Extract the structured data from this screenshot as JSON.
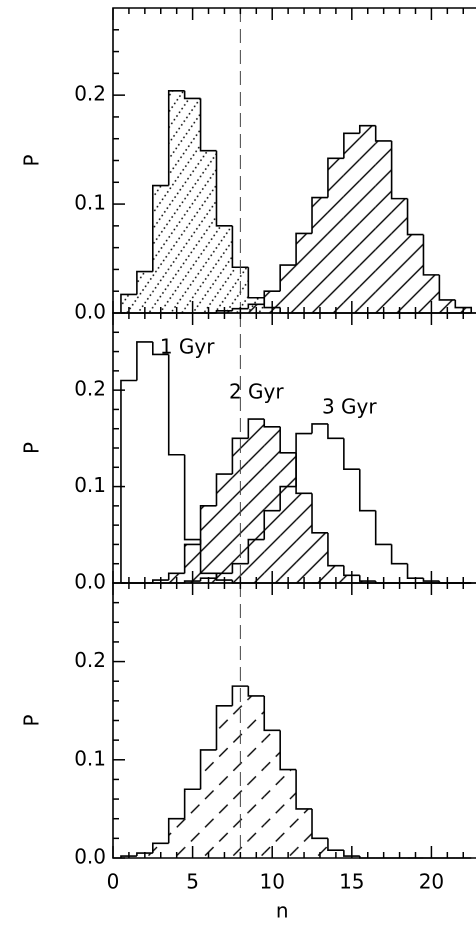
{
  "chart_data": [
    {
      "type": "histogram",
      "xlim": [
        0,
        22.8
      ],
      "ylim": [
        0,
        0.28
      ],
      "xticks": [
        0,
        5,
        10,
        15,
        20
      ],
      "xminorticks": [
        1,
        2,
        3,
        4,
        6,
        7,
        8,
        9,
        11,
        12,
        13,
        14,
        16,
        17,
        18,
        19,
        21,
        22
      ],
      "yticks": [
        {
          "value": 0,
          "label": "0.0"
        },
        0.1,
        0.2
      ],
      "yminorticks": [
        0.02,
        0.04,
        0.06,
        0.08,
        0.12,
        0.14,
        0.16,
        0.18,
        0.22,
        0.24,
        0.26
      ],
      "ylabel": "P",
      "vline": 8,
      "color": "#000000",
      "bins": [
        0.5,
        1.5,
        2.5,
        3.5,
        4.5,
        5.5,
        6.5,
        7.5,
        8.5,
        9.5,
        10.5,
        11.5,
        12.5,
        13.5,
        14.5,
        15.5,
        16.5,
        17.5,
        18.5,
        19.5,
        20.5,
        21.5,
        22.5
      ],
      "series": [
        {
          "hatch": "dotted",
          "values": [
            0.017,
            0.038,
            0.117,
            0.204,
            0.197,
            0.149,
            0.08,
            0.042,
            0.014,
            0.005,
            0,
            0,
            0,
            0,
            0,
            0,
            0,
            0,
            0,
            0,
            0,
            0
          ]
        },
        {
          "hatch": "diagonal",
          "values": [
            0,
            0,
            0,
            0,
            0,
            0,
            0.002,
            0.004,
            0.008,
            0.02,
            0.044,
            0.073,
            0.106,
            0.142,
            0.165,
            0.172,
            0.158,
            0.105,
            0.072,
            0.035,
            0.012,
            0.005
          ]
        }
      ]
    },
    {
      "type": "histogram",
      "xlim": [
        0,
        22.8
      ],
      "ylim": [
        0,
        0.28
      ],
      "xticks": [
        0,
        5,
        10,
        15,
        20
      ],
      "xminorticks": [
        1,
        2,
        3,
        4,
        6,
        7,
        8,
        9,
        11,
        12,
        13,
        14,
        16,
        17,
        18,
        19,
        21,
        22
      ],
      "yticks": [
        {
          "value": 0,
          "label": "0.0"
        },
        0.1,
        0.2
      ],
      "yminorticks": [
        0.02,
        0.04,
        0.06,
        0.08,
        0.12,
        0.14,
        0.16,
        0.18,
        0.22,
        0.24,
        0.26
      ],
      "ylabel": "P",
      "vline": 8,
      "color": "#000000",
      "bins": [
        0.5,
        1.5,
        2.5,
        3.5,
        4.5,
        5.5,
        6.5,
        7.5,
        8.5,
        9.5,
        10.5,
        11.5,
        12.5,
        13.5,
        14.5,
        15.5,
        16.5,
        17.5,
        18.5,
        19.5,
        20.5,
        21.5,
        22.5
      ],
      "series": [
        {
          "name": "1 Gyr",
          "hatch": "none",
          "values": [
            0.21,
            0.25,
            0.237,
            0.133,
            0.045,
            0.01,
            0.003,
            0,
            0,
            0,
            0,
            0,
            0,
            0,
            0,
            0,
            0,
            0,
            0,
            0,
            0,
            0
          ]
        },
        {
          "name": "2 Gyr",
          "hatch": "diagonal",
          "values": [
            0,
            0,
            0.003,
            0.01,
            0.04,
            0.08,
            0.113,
            0.15,
            0.17,
            0.162,
            0.135,
            0.093,
            0.052,
            0.018,
            0.008,
            0.002,
            0,
            0,
            0,
            0,
            0,
            0
          ]
        },
        {
          "name": "3 Gyr",
          "hatch": "none",
          "values": [
            0,
            0,
            0,
            0,
            0.002,
            0.005,
            0.01,
            0.02,
            0.045,
            0.075,
            0.1,
            0.155,
            0.165,
            0.15,
            0.118,
            0.075,
            0.04,
            0.02,
            0.005,
            0.002,
            0,
            0
          ]
        }
      ]
    },
    {
      "type": "histogram",
      "xlim": [
        0,
        22.8
      ],
      "ylim": [
        0,
        0.28
      ],
      "xticks": [
        0,
        5,
        10,
        15,
        20
      ],
      "xminorticks": [
        1,
        2,
        3,
        4,
        6,
        7,
        8,
        9,
        11,
        12,
        13,
        14,
        16,
        17,
        18,
        19,
        21,
        22
      ],
      "xtick_labels": true,
      "yticks": [
        {
          "value": 0,
          "label": "0.0"
        },
        0.1,
        0.2
      ],
      "yminorticks": [
        0.02,
        0.04,
        0.06,
        0.08,
        0.12,
        0.14,
        0.16,
        0.18,
        0.22,
        0.24,
        0.26
      ],
      "ylabel": "P",
      "xlabel": "n",
      "vline": 8,
      "color": "#000000",
      "bins": [
        0.5,
        1.5,
        2.5,
        3.5,
        4.5,
        5.5,
        6.5,
        7.5,
        8.5,
        9.5,
        10.5,
        11.5,
        12.5,
        13.5,
        14.5,
        15.5,
        16.5,
        17.5,
        18.5,
        19.5,
        20.5,
        21.5,
        22.5
      ],
      "series": [
        {
          "hatch": "dashed",
          "values": [
            0.002,
            0.005,
            0.015,
            0.04,
            0.07,
            0.11,
            0.155,
            0.175,
            0.165,
            0.13,
            0.09,
            0.05,
            0.02,
            0.008,
            0.002,
            0,
            0,
            0,
            0,
            0,
            0,
            0
          ]
        }
      ]
    }
  ]
}
